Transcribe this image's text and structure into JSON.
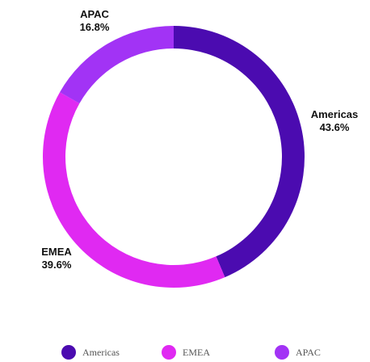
{
  "chart_data": {
    "type": "pie",
    "variant": "donut",
    "categories": [
      "Americas",
      "EMEA",
      "APAC"
    ],
    "values": [
      43.6,
      39.6,
      16.8
    ],
    "labels": [
      "43.6%",
      "39.6%",
      "16.8%"
    ],
    "colors": [
      "#4B0BB0",
      "#E029F2",
      "#A233F5"
    ],
    "title": "",
    "legend": {
      "position": "bottom",
      "entries": [
        "Americas",
        "EMEA",
        "APAC"
      ]
    }
  }
}
